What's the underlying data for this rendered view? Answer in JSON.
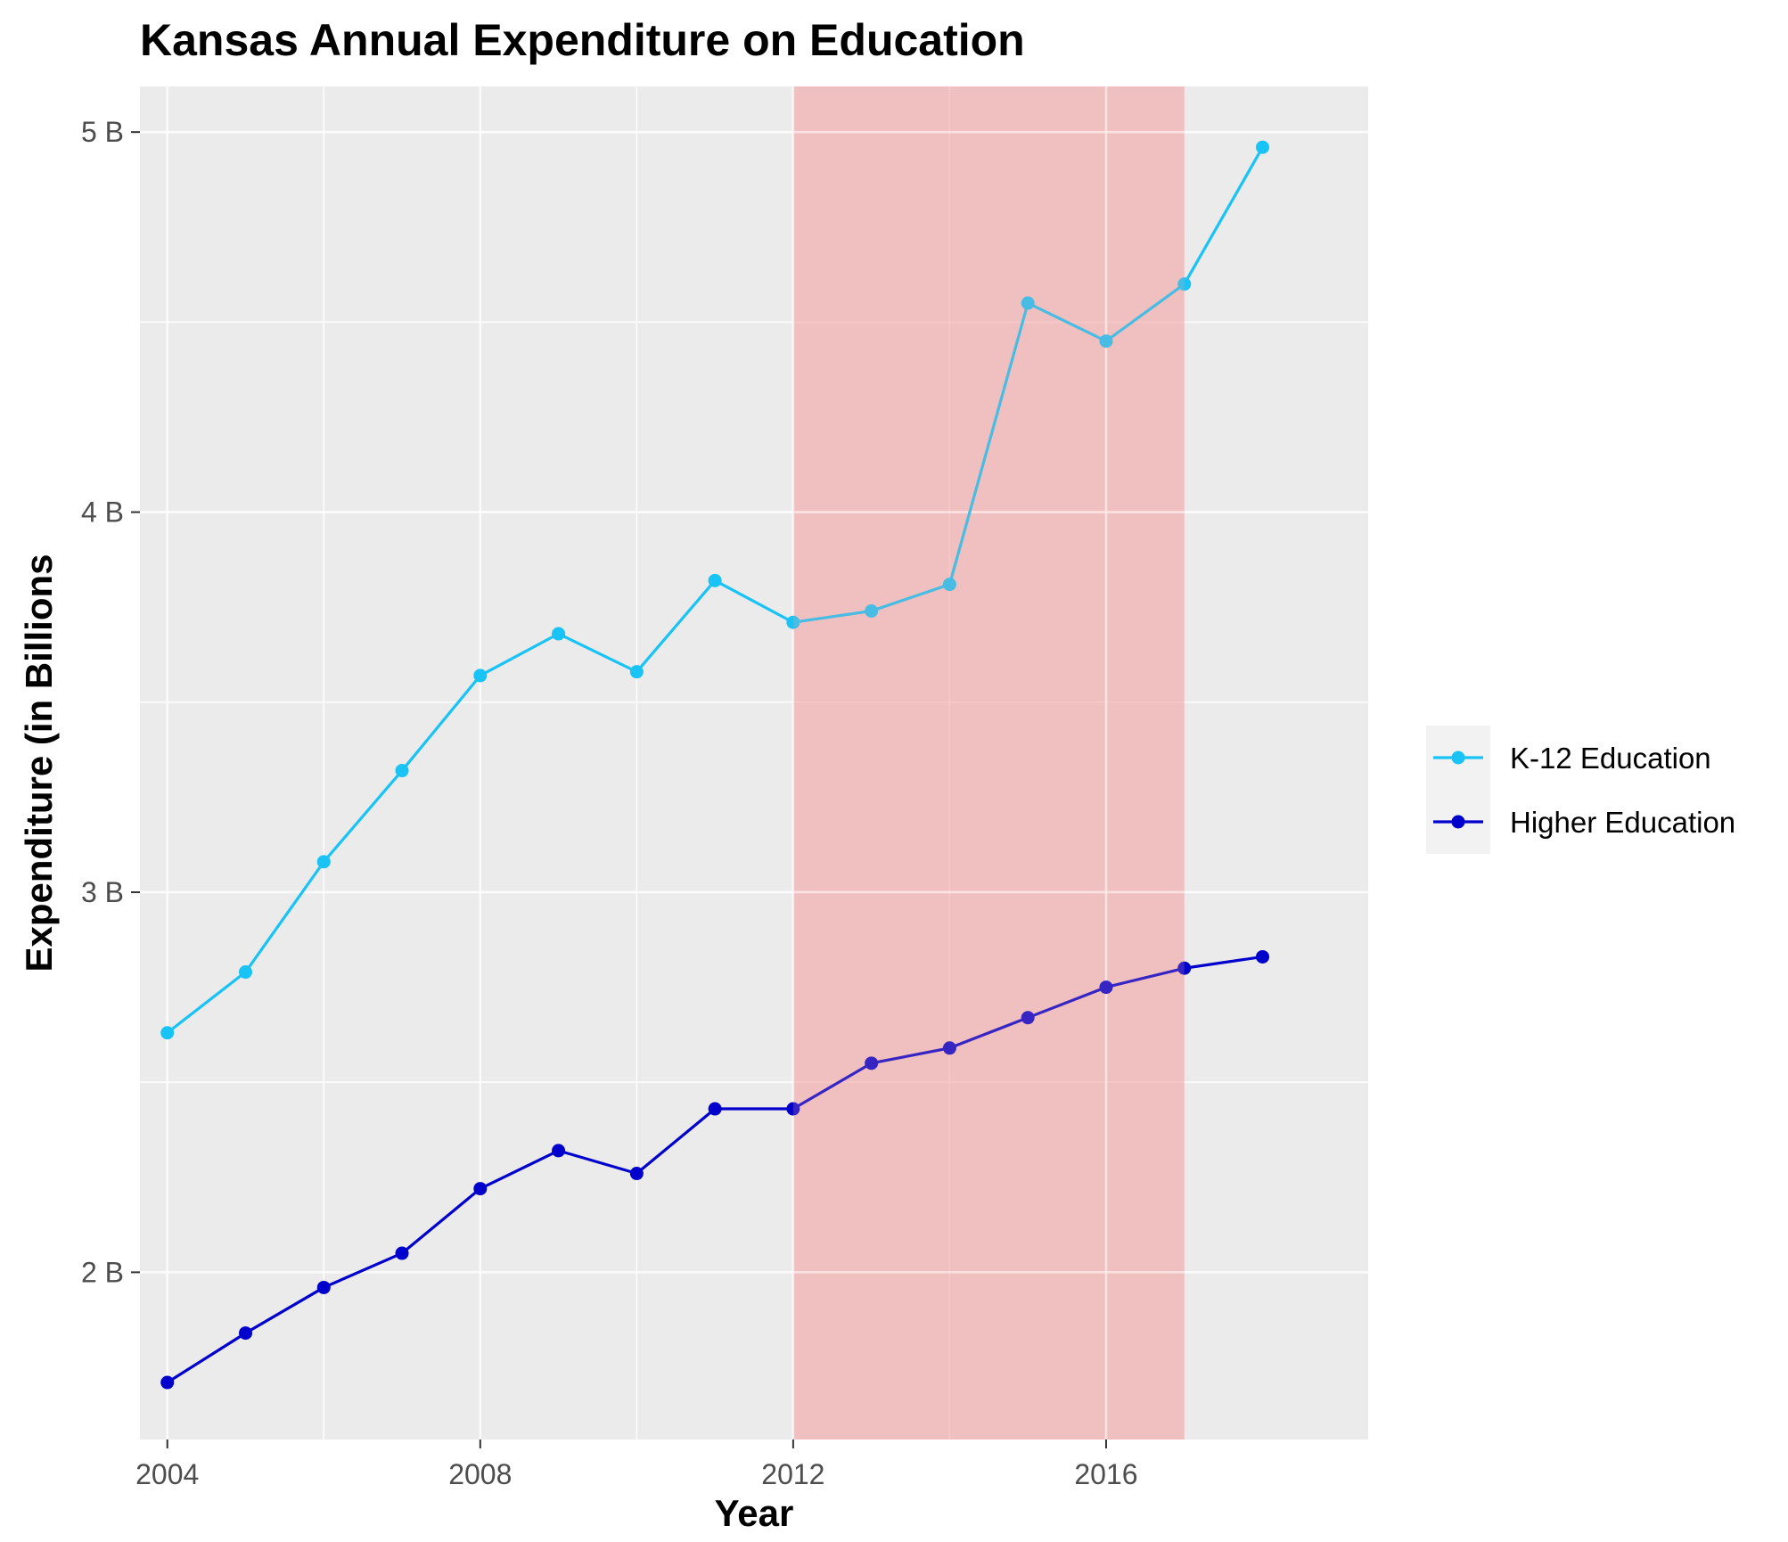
{
  "chart_data": {
    "type": "line",
    "title": "Kansas Annual Expenditure on Education",
    "xlabel": "Year",
    "ylabel": "Expenditure (in Billions",
    "x": [
      2004,
      2005,
      2006,
      2007,
      2008,
      2009,
      2010,
      2011,
      2012,
      2013,
      2014,
      2015,
      2016,
      2017,
      2018
    ],
    "xlim": [
      2003.65,
      2019.35
    ],
    "ylim": [
      1.56,
      5.12
    ],
    "x_ticks": [
      2004,
      2008,
      2012,
      2016
    ],
    "x_tick_labels": [
      "2004",
      "2008",
      "2012",
      "2016"
    ],
    "y_ticks": [
      2,
      3,
      4,
      5
    ],
    "y_tick_labels": [
      "2 B",
      "3 B",
      "4 B",
      "5 B"
    ],
    "shaded_region": {
      "x_start": 2012,
      "x_end": 2017,
      "color": "#f4a6a6"
    },
    "grid": true,
    "legend_position": "right",
    "series": [
      {
        "name": "K-12 Education",
        "color": "#19c3f5",
        "values": [
          2.63,
          2.79,
          3.08,
          3.32,
          3.57,
          3.68,
          3.58,
          3.82,
          3.71,
          3.74,
          3.81,
          4.55,
          4.45,
          4.6,
          4.96
        ]
      },
      {
        "name": "Higher Education",
        "color": "#0000cc",
        "values": [
          1.71,
          1.84,
          1.96,
          2.05,
          2.22,
          2.32,
          2.26,
          2.43,
          2.43,
          2.55,
          2.59,
          2.67,
          2.75,
          2.8,
          2.83
        ]
      }
    ]
  }
}
